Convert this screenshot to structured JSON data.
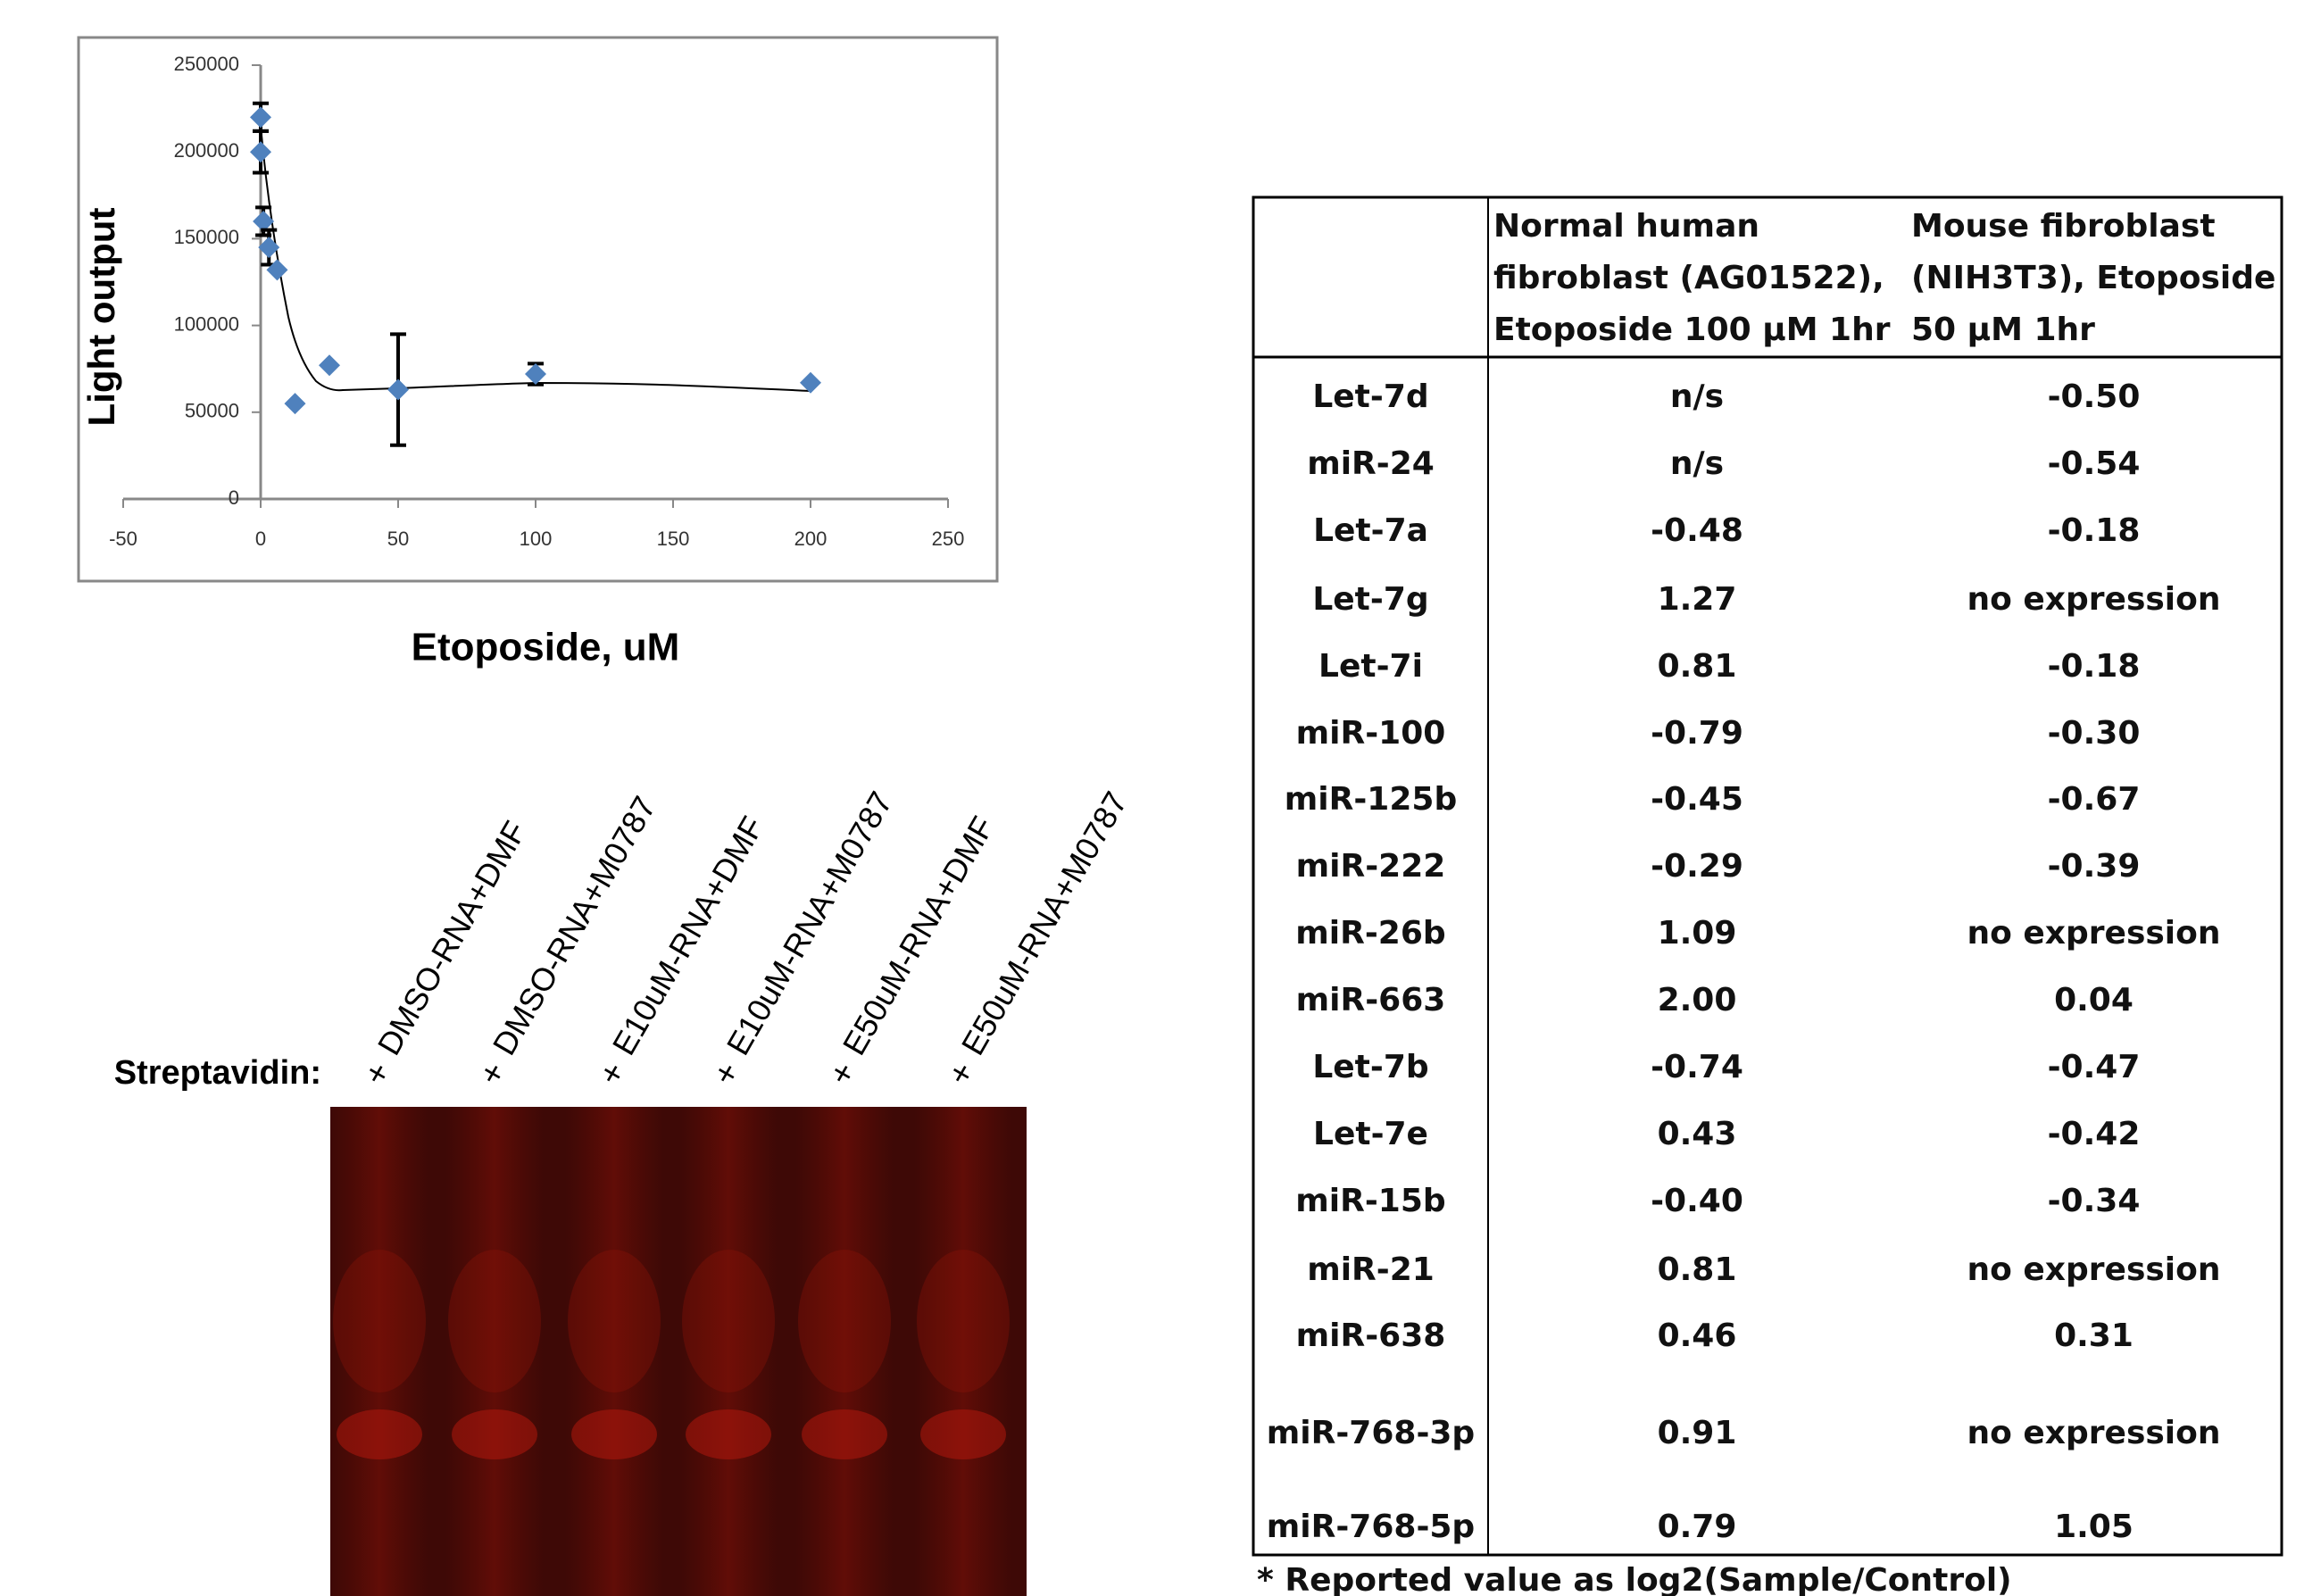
{
  "chart_data": {
    "type": "scatter",
    "x_label": "Etoposide, uM",
    "y_label": "Light output",
    "x": [
      0,
      0,
      1,
      3,
      6,
      12.5,
      25,
      50,
      100,
      200
    ],
    "values": [
      220000,
      200000,
      160000,
      145000,
      132000,
      55000,
      77000,
      63000,
      72000,
      67000
    ],
    "errors": [
      8000,
      12000,
      8000,
      10000,
      null,
      null,
      null,
      32000,
      6000,
      null
    ],
    "color": "#4f81bd",
    "xlim": [
      -50,
      250
    ],
    "xticks": [
      -50,
      0,
      50,
      100,
      150,
      200,
      250
    ],
    "ylim": [
      0,
      250000
    ],
    "yticks": [
      0,
      50000,
      100000,
      150000,
      200000,
      250000
    ]
  },
  "gel": {
    "row_label": "Streptavidin:",
    "marks": [
      "+",
      "+",
      "+",
      "+",
      "+",
      "+"
    ],
    "lanes": [
      "DMSO-RNA+DMF",
      "DMSO-RNA+M0787",
      "E10uM-RNA+DMF",
      "E10uM-RNA+M0787",
      "E50uM-RNA+DMF",
      "E50uM-RNA+M0787"
    ]
  },
  "table": {
    "header": [
      [
        "Normal human",
        "fibroblast (AG01522),",
        "Etoposide 100 μM 1hr"
      ],
      [
        "Mouse fibroblast",
        "(NIH3T3), Etoposide",
        "50 μM 1hr"
      ]
    ],
    "rows": [
      [
        "Let-7d",
        "n/s",
        "-0.50"
      ],
      [
        "miR-24",
        "n/s",
        "-0.54"
      ],
      [
        "Let-7a",
        "-0.48",
        "-0.18"
      ],
      [
        "Let-7g",
        "1.27",
        "no expression"
      ],
      [
        "Let-7i",
        "0.81",
        "-0.18"
      ],
      [
        "miR-100",
        "-0.79",
        "-0.30"
      ],
      [
        "miR-125b",
        "-0.45",
        "-0.67"
      ],
      [
        "miR-222",
        "-0.29",
        "-0.39"
      ],
      [
        "miR-26b",
        "1.09",
        "no expression"
      ],
      [
        "miR-663",
        "2.00",
        "0.04"
      ],
      [
        "Let-7b",
        "-0.74",
        "-0.47"
      ],
      [
        "Let-7e",
        "0.43",
        "-0.42"
      ],
      [
        "miR-15b",
        "-0.40",
        "-0.34"
      ],
      [
        "miR-21",
        "0.81",
        "no expression"
      ],
      [
        "miR-638",
        "0.46",
        "0.31"
      ],
      [
        "miR-768-3p",
        "0.91",
        "no expression"
      ],
      [
        "miR-768-5p",
        "0.79",
        "1.05"
      ]
    ],
    "footnote": "* Reported value as log2(Sample/Control)"
  }
}
